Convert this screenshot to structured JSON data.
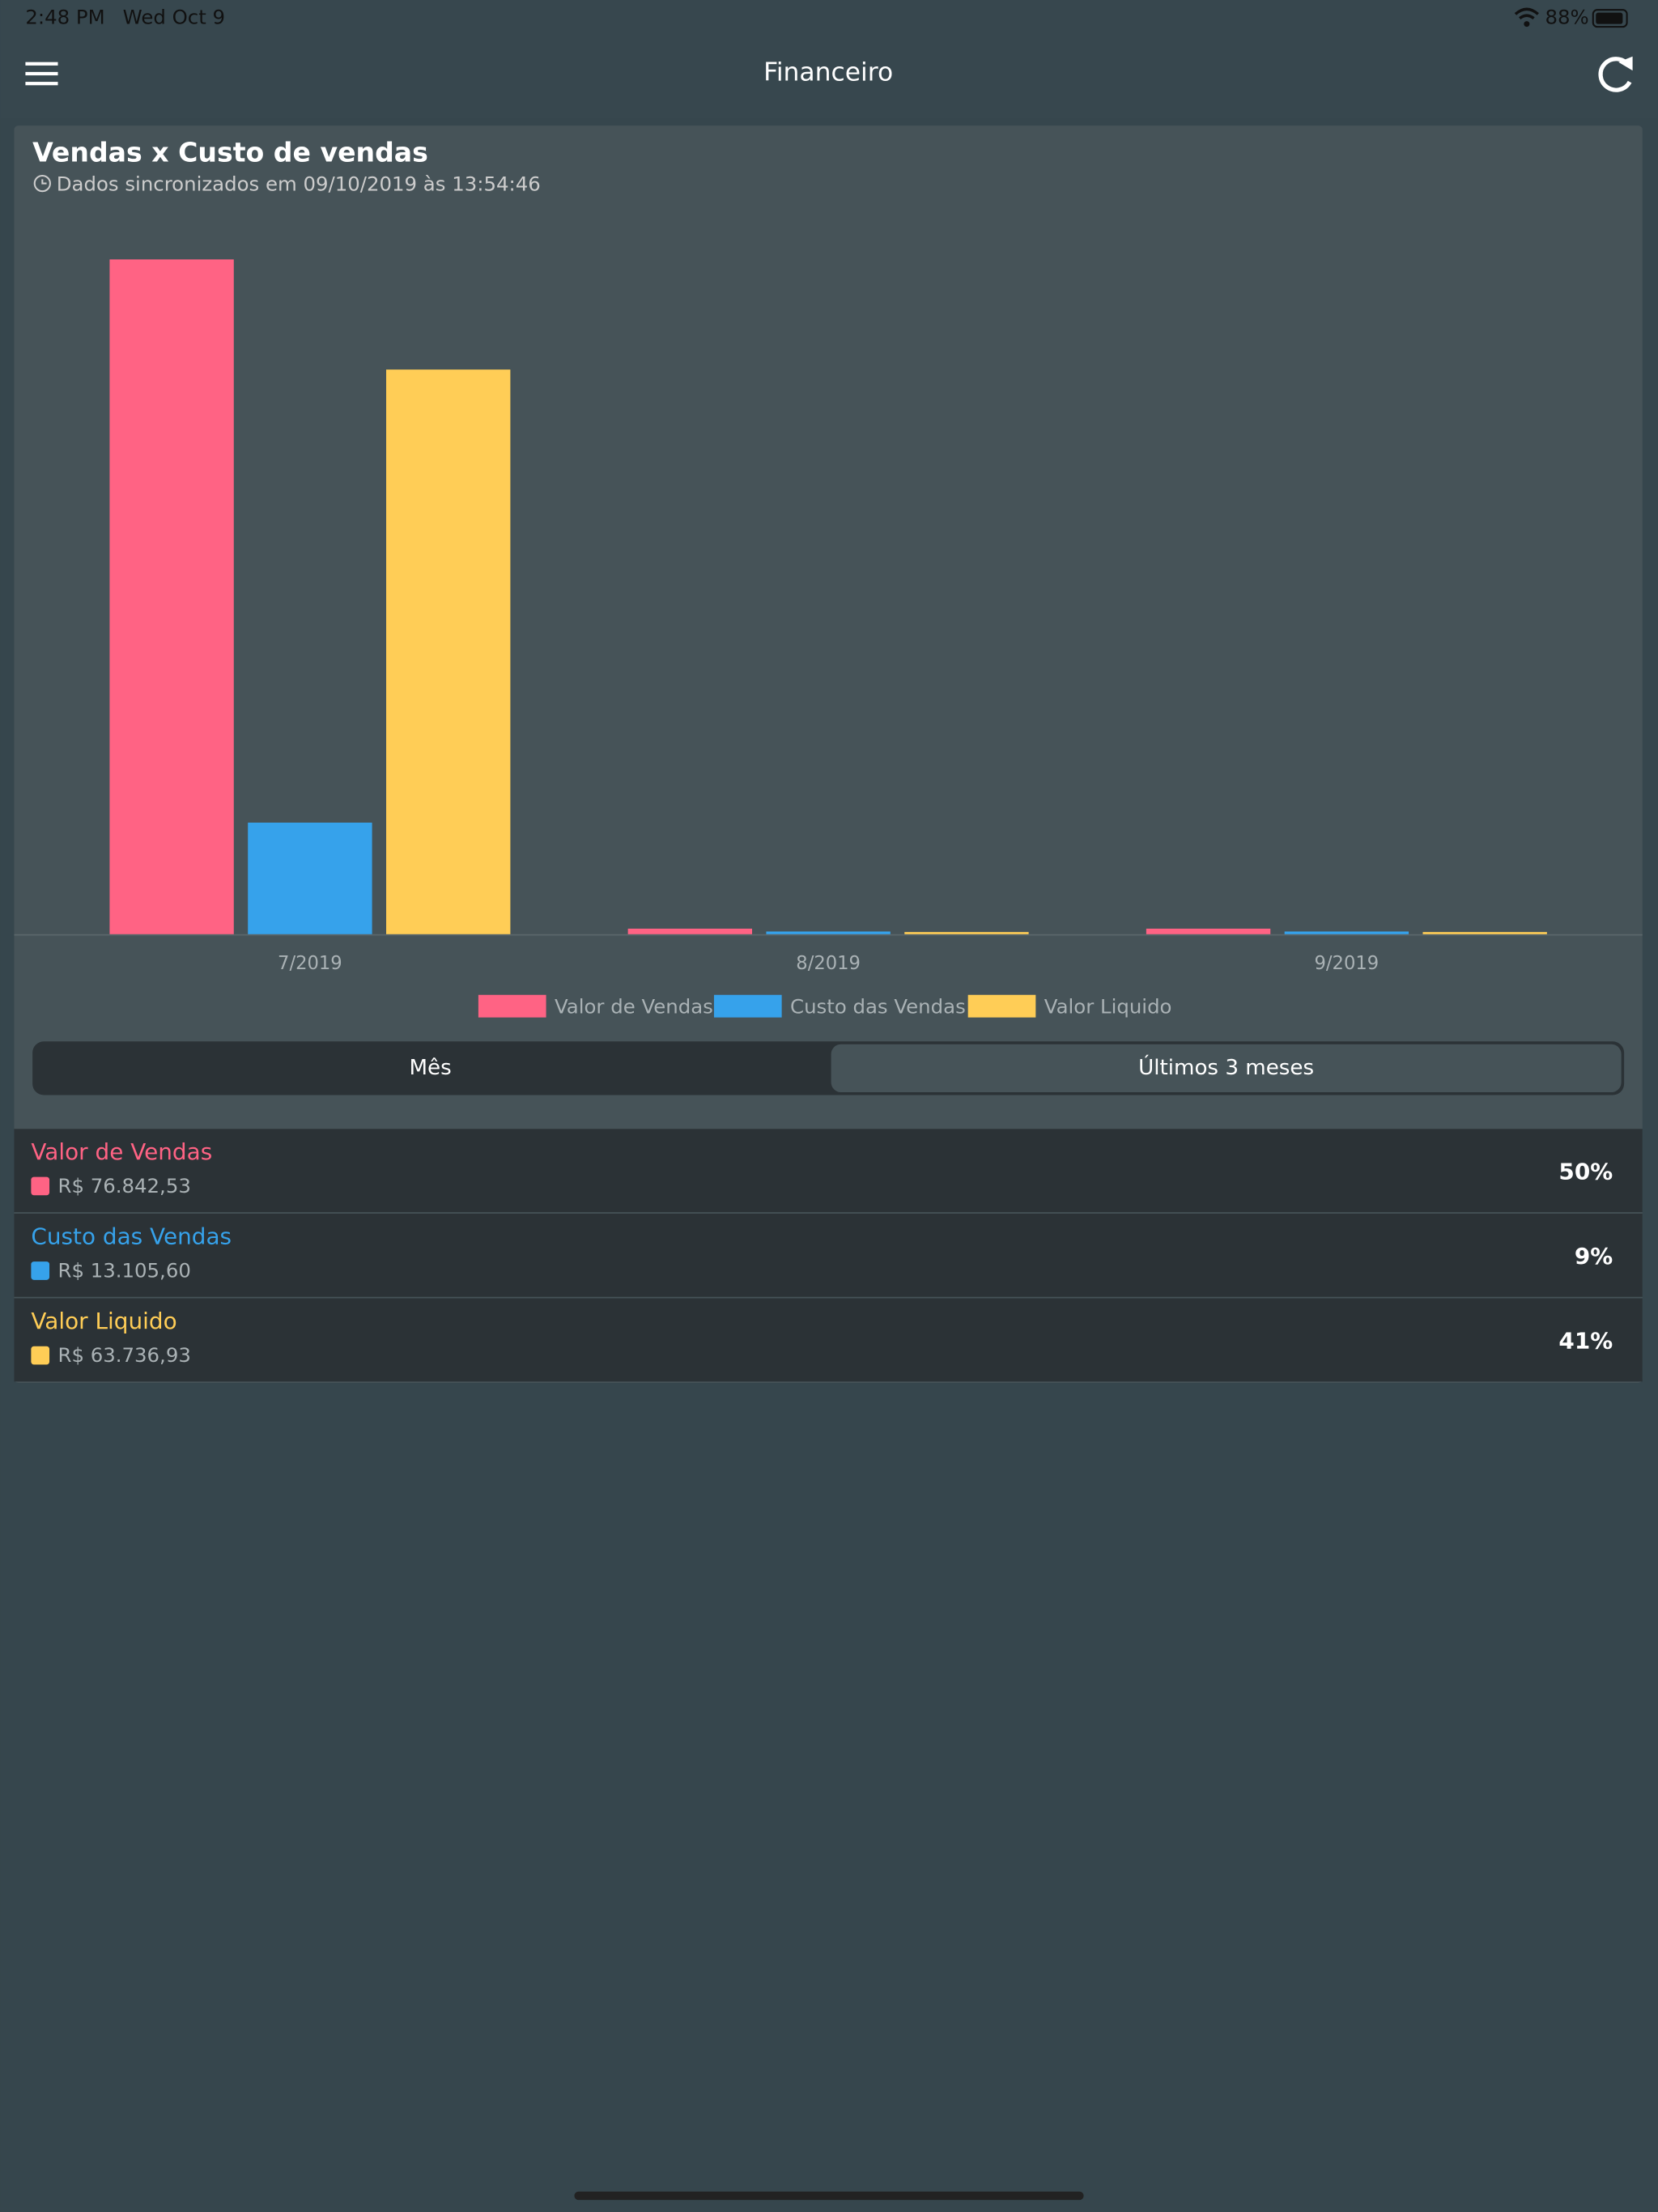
{
  "status_bar": {
    "time": "2:48 PM",
    "date": "Wed Oct 9",
    "battery": "88%"
  },
  "header": {
    "title": "Financeiro"
  },
  "chart_data": {
    "type": "bar",
    "title": "Vendas x Custo de vendas",
    "subtitle": "Dados sincronizados em 09/10/2019 às 13:54:46",
    "categories": [
      "7/2019",
      "8/2019",
      "9/2019"
    ],
    "series": [
      {
        "name": "Valor de Vendas",
        "color": "#ff6384",
        "values": [
          75600,
          620,
          620
        ]
      },
      {
        "name": "Custo das Vendas",
        "color": "#36a2eb",
        "values": [
          12500,
          300,
          300
        ]
      },
      {
        "name": "Valor Liquido",
        "color": "#ffcd56",
        "values": [
          63260,
          240,
          240
        ]
      }
    ],
    "ylim": [
      0,
      80000
    ],
    "grid": false,
    "legend": "bottom"
  },
  "segmented_control": {
    "options": [
      "Mês",
      "Últimos 3 meses"
    ],
    "selected": 1
  },
  "summary": {
    "rows": [
      {
        "name": "Valor de Vendas",
        "amount": "R$ 76.842,53",
        "percent": "50%"
      },
      {
        "name": "Custo das Vendas",
        "amount": "R$ 13.105,60",
        "percent": "9%"
      },
      {
        "name": "Valor Liquido",
        "amount": "R$ 63.736,93",
        "percent": "41%"
      }
    ]
  }
}
